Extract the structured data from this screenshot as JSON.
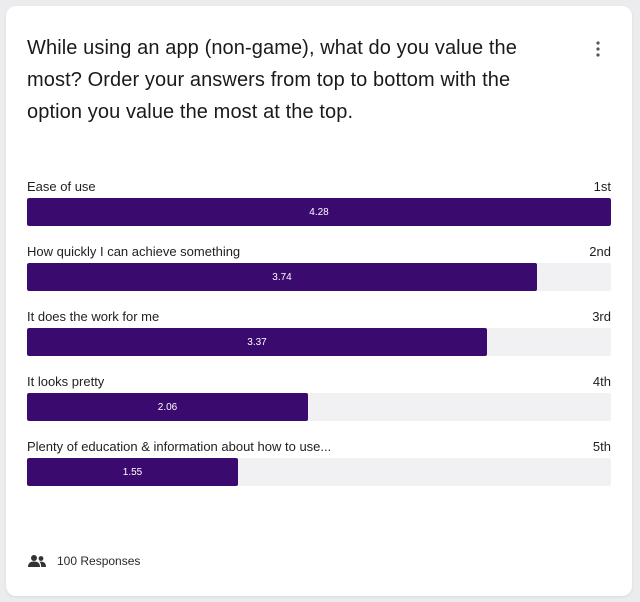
{
  "question": {
    "title": "While using an app (non-game), what do you value the most? Order your answers from top to bottom with the option you value the most at the top."
  },
  "colors": {
    "bar_fill": "#3a0a6e",
    "track": "#f1f1f3"
  },
  "chart_data": {
    "type": "bar",
    "orientation": "horizontal",
    "max_value": 4.28,
    "items": [
      {
        "label": "Ease of use",
        "rank": "1st",
        "value": 4.28,
        "value_label": "4.28"
      },
      {
        "label": "How quickly I can achieve something",
        "rank": "2nd",
        "value": 3.74,
        "value_label": "3.74"
      },
      {
        "label": "It does the work for me",
        "rank": "3rd",
        "value": 3.37,
        "value_label": "3.37"
      },
      {
        "label": "It looks pretty",
        "rank": "4th",
        "value": 2.06,
        "value_label": "2.06"
      },
      {
        "label": "Plenty of education & information about how to use...",
        "rank": "5th",
        "value": 1.55,
        "value_label": "1.55"
      }
    ]
  },
  "footer": {
    "icon": "people-icon",
    "responses_label": "100 Responses"
  }
}
